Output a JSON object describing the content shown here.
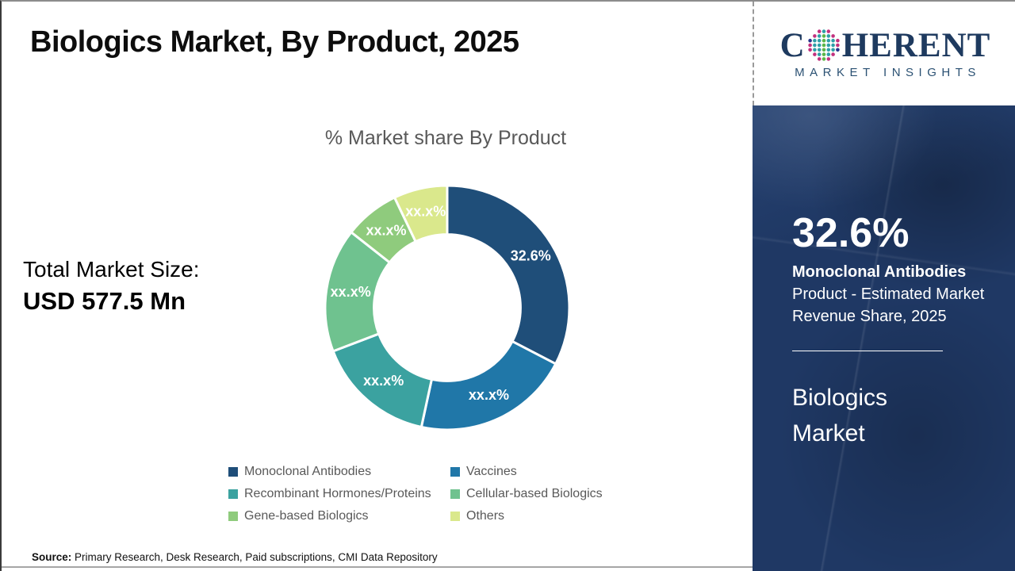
{
  "header": {
    "title": "Biologics Market, By Product, 2025"
  },
  "logo": {
    "part1": "C",
    "part2": "HERENT",
    "subtitle": "MARKET INSIGHTS",
    "navy": "#1E3A5F",
    "dot_colors": [
      "#C2317E",
      "#2E9FA8",
      "#5BB649",
      "#27348B"
    ]
  },
  "totals": {
    "label": "Total Market Size:",
    "value": "USD 577.5 Mn"
  },
  "source": {
    "label": "Source:",
    "text": " Primary Research, Desk Research, Paid subscriptions, CMI Data Repository"
  },
  "sidebar": {
    "stat_value": "32.6%",
    "stat_title": "Monoclonal Antibodies",
    "stat_desc": "Product - Estimated Market Revenue Share, 2025",
    "market_name": "Biologics Market",
    "bg_color": "#1F3864"
  },
  "chart_data": {
    "type": "pie",
    "donut": true,
    "title": "% Market share By Product",
    "start_angle_deg": 0,
    "inner_radius_ratio": 0.6,
    "legend_position": "bottom",
    "labels": [
      "Monoclonal Antibodies",
      "Vaccines",
      "Recombinant Hormones/Proteins",
      "Cellular-based Biologics",
      "Gene-based Biologics",
      "Others"
    ],
    "values": [
      32.6,
      20.8,
      15.8,
      16.4,
      7.3,
      7.1
    ],
    "displayed_labels": [
      "32.6%",
      "xx.x%",
      "xx.x%",
      "xx.x%",
      "xx.x%",
      "xx.x%"
    ],
    "colors": [
      "#1F4E79",
      "#2077A8",
      "#3BA2A0",
      "#6FC28F",
      "#8FCB7D",
      "#DAE88C"
    ]
  }
}
